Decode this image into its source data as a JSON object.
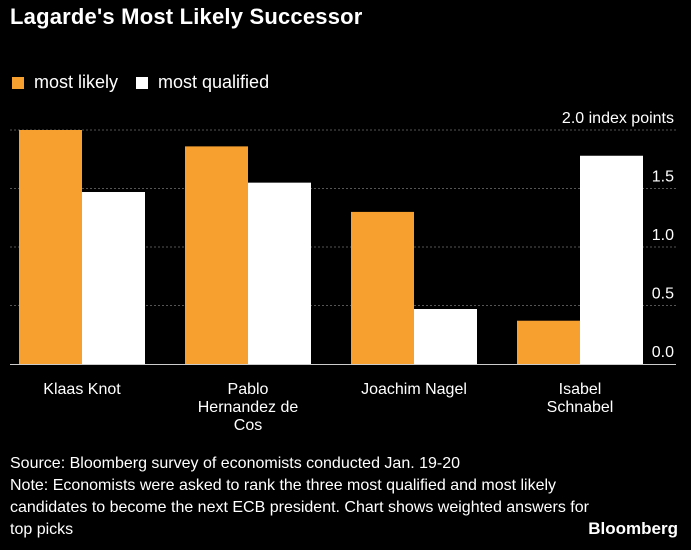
{
  "title": "Lagarde's Most Likely Successor",
  "legend": {
    "series": [
      {
        "label": "most likely",
        "color": "#f7a02f"
      },
      {
        "label": "most qualified",
        "color": "#ffffff"
      }
    ]
  },
  "chart_data": {
    "type": "bar",
    "title": "Lagarde's Most Likely Successor",
    "categories": [
      [
        "Klaas Knot"
      ],
      [
        "Pablo",
        "Hernandez de",
        "Cos"
      ],
      [
        "Joachim Nagel"
      ],
      [
        "Isabel",
        "Schnabel"
      ]
    ],
    "category_names": [
      "Klaas Knot",
      "Pablo Hernandez de Cos",
      "Joachim Nagel",
      "Isabel Schnabel"
    ],
    "series": [
      {
        "name": "most likely",
        "color": "#f7a02f",
        "values": [
          2.0,
          1.86,
          1.3,
          0.37
        ]
      },
      {
        "name": "most qualified",
        "color": "#ffffff",
        "values": [
          1.47,
          1.55,
          0.47,
          1.78
        ]
      }
    ],
    "y_ticks": [
      {
        "value": 2.0,
        "label": "2.0 index points"
      },
      {
        "value": 1.5,
        "label": "1.5"
      },
      {
        "value": 1.0,
        "label": "1.0"
      },
      {
        "value": 0.5,
        "label": "0.5"
      },
      {
        "value": 0.0,
        "label": "0.0"
      }
    ],
    "ylim": [
      0,
      2.0
    ],
    "ylabel": "index points",
    "xlabel": "",
    "grid": true,
    "legend_position": "top-left"
  },
  "footer": {
    "source": "Source: Bloomberg survey of economists conducted Jan. 19-20",
    "note": "Note: Economists were asked to rank the three most qualified and most likely candidates to become the next ECB president. Chart shows weighted answers for top picks"
  },
  "brand": "Bloomberg",
  "colors": {
    "background": "#000000",
    "grid": "#555555",
    "axis": "#cccccc",
    "text": "#ffffff"
  }
}
